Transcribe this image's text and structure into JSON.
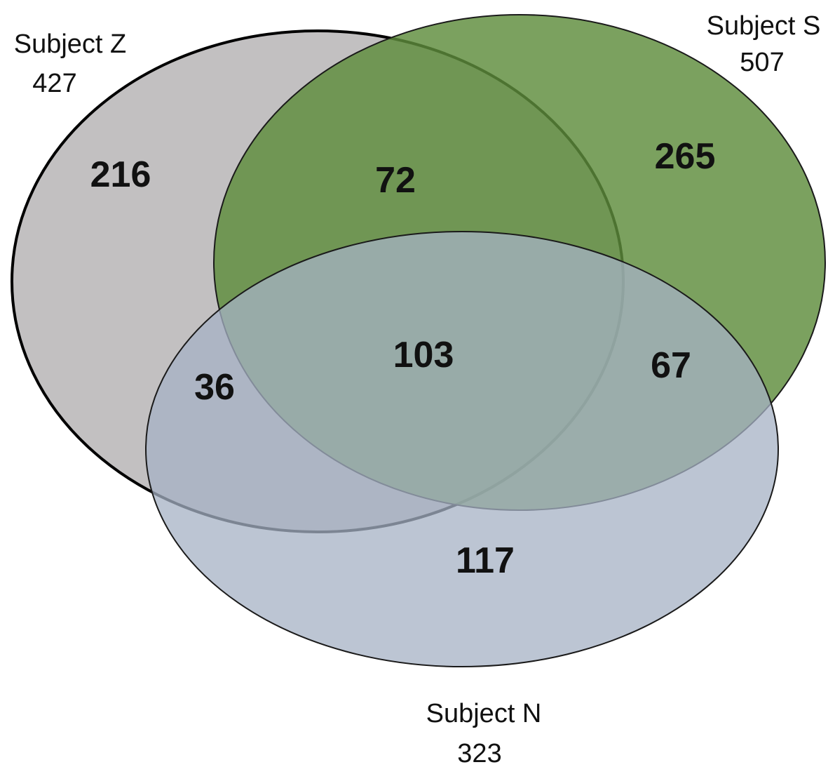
{
  "sets": {
    "z": {
      "name": "Subject Z",
      "total": "427",
      "color": "#b7b5b6"
    },
    "s": {
      "name": "Subject S",
      "total": "507",
      "color": "#5e8c3c"
    },
    "n": {
      "name": "Subject N",
      "total": "323",
      "color": "#a6b1c4"
    }
  },
  "regions": {
    "z_only": "216",
    "s_only": "265",
    "n_only": "117",
    "z_s": "72",
    "z_n": "36",
    "s_n": "67",
    "z_s_n": "103"
  }
}
